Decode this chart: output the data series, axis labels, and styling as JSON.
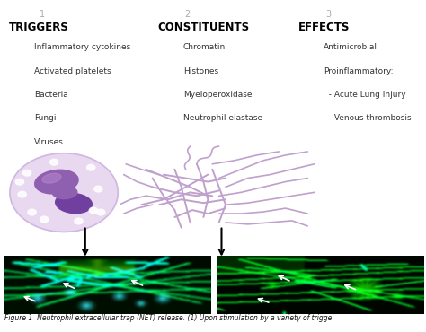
{
  "background_color": "#ffffff",
  "col1_header_num": "1",
  "col2_header_num": "2",
  "col3_header_num": "3",
  "col1_title": "TRIGGERS",
  "col2_title": "CONSTITUENTS",
  "col3_title": "EFFECTS",
  "col1_items": [
    "Inflammatory cytokines",
    "Activated platelets",
    "Bacteria",
    "Fungi",
    "Viruses"
  ],
  "col2_items": [
    "Chromatin",
    "Histones",
    "Myeloperoxidase",
    "Neutrophil elastase"
  ],
  "col3_items": [
    "Antimicrobial",
    "Proinflammatory:",
    "  - Acute Lung Injury",
    "  - Venous thrombosis"
  ],
  "header_num_color": "#aaaaaa",
  "title_color": "#000000",
  "item_color": "#333333",
  "net_color": "#c0a0cc",
  "figure_caption": "Figure 1  Neutrophil extracellular trap (NET) release. (1) Upon stimulation by a variety of trigge"
}
